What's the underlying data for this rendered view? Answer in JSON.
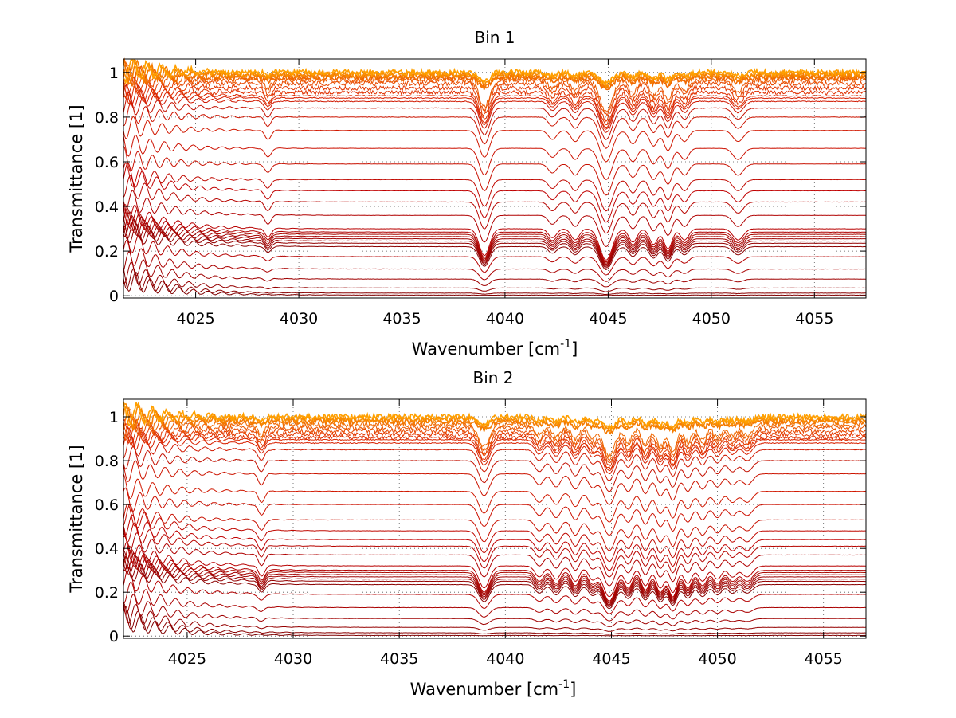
{
  "chart_data": [
    {
      "type": "line",
      "title": "Bin 1",
      "xlabel": "Wavenumber [cm",
      "xlabel_sup": "-1",
      "xlabel_tail": "]",
      "ylabel": "Transmittance [1]",
      "xlim": [
        4021.5,
        4057.5
      ],
      "ylim": [
        -0.01,
        1.06
      ],
      "xticks": [
        4025,
        4030,
        4035,
        4040,
        4045,
        4050,
        4055
      ],
      "yticks": [
        0,
        0.2,
        0.4,
        0.6,
        0.8,
        1
      ],
      "ytick_labels": [
        "0",
        "0.2",
        "0.4",
        "0.6",
        "0.8",
        "1"
      ],
      "grid": true,
      "baselines": [
        0.003,
        0.012,
        0.035,
        0.075,
        0.12,
        0.175,
        0.22,
        0.235,
        0.245,
        0.255,
        0.265,
        0.275,
        0.285,
        0.3,
        0.36,
        0.42,
        0.47,
        0.52,
        0.59,
        0.66,
        0.74,
        0.8,
        0.84,
        0.87,
        0.885,
        0.895,
        0.91,
        0.93,
        0.95,
        0.965,
        0.975,
        0.985,
        0.993,
        1.0
      ],
      "colors": [
        "#7f0000",
        "#8a0000",
        "#950000",
        "#9f0000",
        "#aa0000",
        "#b40000",
        "#8b0000",
        "#940000",
        "#990000",
        "#a00000",
        "#a50000",
        "#aa0a00",
        "#b00000",
        "#b80000",
        "#b00000",
        "#b80500",
        "#c00000",
        "#c00800",
        "#c81000",
        "#cc1000",
        "#d01800",
        "#cc1400",
        "#c41000",
        "#d01800",
        "#d82000",
        "#dc2800",
        "#e03000",
        "#e43800",
        "#e84800",
        "#ec5800",
        "#f06800",
        "#f47a00",
        "#f88c00",
        "#ffa000"
      ],
      "dips": [
        {
          "x": 4039.0,
          "w": 0.25,
          "d": 0.12
        },
        {
          "x": 4044.9,
          "w": 0.3,
          "d": 0.14
        },
        {
          "x": 4028.5,
          "w": 0.15,
          "d": 0.04
        },
        {
          "x": 4042.3,
          "w": 0.2,
          "d": 0.04
        },
        {
          "x": 4043.4,
          "w": 0.2,
          "d": 0.05
        },
        {
          "x": 4046.2,
          "w": 0.2,
          "d": 0.06
        },
        {
          "x": 4047.2,
          "w": 0.2,
          "d": 0.07
        },
        {
          "x": 4047.9,
          "w": 0.2,
          "d": 0.09
        },
        {
          "x": 4048.7,
          "w": 0.2,
          "d": 0.05
        },
        {
          "x": 4051.3,
          "w": 0.25,
          "d": 0.05
        }
      ]
    },
    {
      "type": "line",
      "title": "Bin 2",
      "xlabel": "Wavenumber [cm",
      "xlabel_sup": "-1",
      "xlabel_tail": "]",
      "ylabel": "Transmittance [1]",
      "xlim": [
        4022,
        4057
      ],
      "ylim": [
        -0.01,
        1.08
      ],
      "xticks": [
        4025,
        4030,
        4035,
        4040,
        4045,
        4050,
        4055
      ],
      "yticks": [
        0,
        0.2,
        0.4,
        0.6,
        0.8,
        1
      ],
      "ytick_labels": [
        "0",
        "0.2",
        "0.4",
        "0.6",
        "0.8",
        "1"
      ],
      "grid": true,
      "baselines": [
        0.003,
        0.015,
        0.04,
        0.08,
        0.13,
        0.19,
        0.235,
        0.25,
        0.26,
        0.27,
        0.28,
        0.29,
        0.3,
        0.32,
        0.37,
        0.41,
        0.44,
        0.48,
        0.53,
        0.6,
        0.66,
        0.74,
        0.8,
        0.85,
        0.88,
        0.895,
        0.905,
        0.92,
        0.935,
        0.95,
        0.965,
        0.978,
        0.99,
        1.0
      ],
      "colors": [
        "#7f0000",
        "#8a0000",
        "#950000",
        "#9f0000",
        "#aa0000",
        "#b40000",
        "#8b0000",
        "#940000",
        "#990000",
        "#a00000",
        "#a50000",
        "#aa0a00",
        "#b00000",
        "#b80000",
        "#b00000",
        "#b80500",
        "#c00000",
        "#c00800",
        "#c81000",
        "#cc1000",
        "#d01800",
        "#cc1400",
        "#c41000",
        "#d01800",
        "#d82000",
        "#dc2800",
        "#e03000",
        "#e43800",
        "#e84800",
        "#ec5800",
        "#f06800",
        "#f47a00",
        "#f88c00",
        "#ffa000"
      ],
      "dips": [
        {
          "x": 4039.0,
          "w": 0.25,
          "d": 0.1
        },
        {
          "x": 4044.9,
          "w": 0.3,
          "d": 0.14
        },
        {
          "x": 4028.5,
          "w": 0.15,
          "d": 0.05
        },
        {
          "x": 4041.6,
          "w": 0.2,
          "d": 0.05
        },
        {
          "x": 4042.4,
          "w": 0.2,
          "d": 0.06
        },
        {
          "x": 4043.3,
          "w": 0.2,
          "d": 0.07
        },
        {
          "x": 4044.1,
          "w": 0.2,
          "d": 0.06
        },
        {
          "x": 4045.8,
          "w": 0.2,
          "d": 0.08
        },
        {
          "x": 4046.6,
          "w": 0.2,
          "d": 0.09
        },
        {
          "x": 4047.3,
          "w": 0.2,
          "d": 0.1
        },
        {
          "x": 4047.9,
          "w": 0.2,
          "d": 0.12
        },
        {
          "x": 4048.6,
          "w": 0.2,
          "d": 0.08
        },
        {
          "x": 4049.3,
          "w": 0.2,
          "d": 0.07
        },
        {
          "x": 4050.0,
          "w": 0.2,
          "d": 0.06
        },
        {
          "x": 4050.7,
          "w": 0.2,
          "d": 0.05
        },
        {
          "x": 4051.4,
          "w": 0.25,
          "d": 0.05
        }
      ]
    }
  ]
}
